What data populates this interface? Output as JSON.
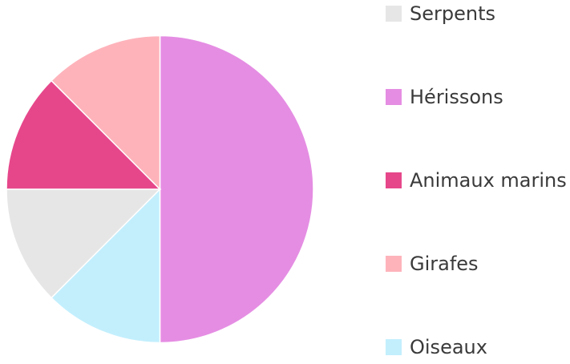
{
  "chart_data": {
    "type": "pie",
    "start_angle_deg": 0,
    "direction": "clockwise",
    "slices": [
      {
        "label": "Hérissons",
        "value": 50,
        "color": "#e58de3"
      },
      {
        "label": "Oiseaux",
        "value": 12.5,
        "color": "#c3effd"
      },
      {
        "label": "Serpents",
        "value": 12.5,
        "color": "#e6e6e6"
      },
      {
        "label": "Animaux marins",
        "value": 12.5,
        "color": "#e6478b"
      },
      {
        "label": "Girafes",
        "value": 12.5,
        "color": "#feb3bb"
      }
    ],
    "legend": {
      "placement": "right",
      "entries": [
        {
          "label": "Serpents",
          "color": "#e6e6e6"
        },
        {
          "label": "Hérissons",
          "color": "#e58de3"
        },
        {
          "label": "Animaux marins",
          "color": "#e6478b"
        },
        {
          "label": "Girafes",
          "color": "#feb3bb"
        },
        {
          "label": "Oiseaux",
          "color": "#c3effd"
        }
      ]
    }
  }
}
